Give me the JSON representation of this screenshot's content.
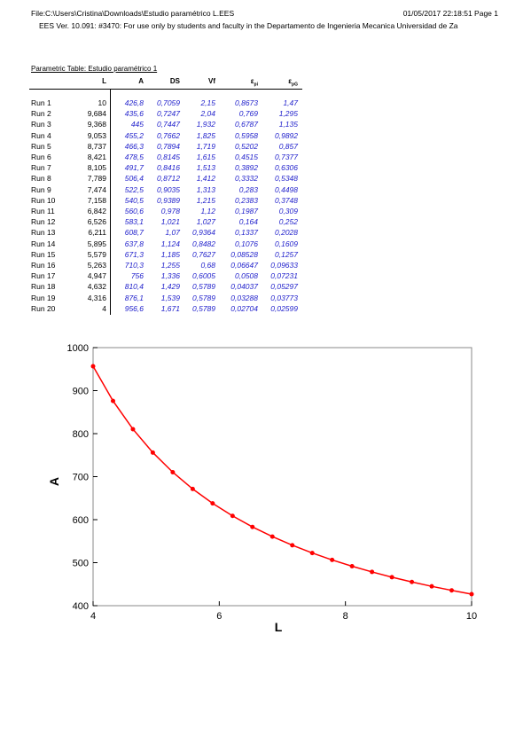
{
  "header": {
    "file": "File:C:\\Users\\Cristina\\Downloads\\Estudio paramétrico L.EES",
    "date": "01/05/2017 22:18:51  Page 1",
    "license": "EES Ver. 10.091: #3470:  For use only by students and faculty in the Departamento de Ingenieria Mecanica Universidad de Za"
  },
  "table": {
    "title": "Parametric Table: Estudio paramétrico 1",
    "columns": [
      {
        "main": "L"
      },
      {
        "main": "A"
      },
      {
        "main": "DS"
      },
      {
        "main": "Vf"
      },
      {
        "main": "ε",
        "sub": "pi"
      },
      {
        "main": "ε",
        "sub": "pG"
      }
    ],
    "rows": [
      {
        "label": "Run 1",
        "cells": [
          "10",
          "426,8",
          "0,7059",
          "2,15",
          "0,8673",
          "1,47"
        ]
      },
      {
        "label": "Run 2",
        "cells": [
          "9,684",
          "435,6",
          "0,7247",
          "2,04",
          "0,769",
          "1,295"
        ]
      },
      {
        "label": "Run 3",
        "cells": [
          "9,368",
          "445",
          "0,7447",
          "1,932",
          "0,6787",
          "1,135"
        ]
      },
      {
        "label": "Run 4",
        "cells": [
          "9,053",
          "455,2",
          "0,7662",
          "1,825",
          "0,5958",
          "0,9892"
        ]
      },
      {
        "label": "Run 5",
        "cells": [
          "8,737",
          "466,3",
          "0,7894",
          "1,719",
          "0,5202",
          "0,857"
        ]
      },
      {
        "label": "Run 6",
        "cells": [
          "8,421",
          "478,5",
          "0,8145",
          "1,615",
          "0,4515",
          "0,7377"
        ]
      },
      {
        "label": "Run 7",
        "cells": [
          "8,105",
          "491,7",
          "0,8416",
          "1,513",
          "0,3892",
          "0,6306"
        ]
      },
      {
        "label": "Run 8",
        "cells": [
          "7,789",
          "506,4",
          "0,8712",
          "1,412",
          "0,3332",
          "0,5348"
        ]
      },
      {
        "label": "Run 9",
        "cells": [
          "7,474",
          "522,5",
          "0,9035",
          "1,313",
          "0,283",
          "0,4498"
        ]
      },
      {
        "label": "Run 10",
        "cells": [
          "7,158",
          "540,5",
          "0,9389",
          "1,215",
          "0,2383",
          "0,3748"
        ]
      },
      {
        "label": "Run 11",
        "cells": [
          "6,842",
          "560,6",
          "0,978",
          "1,12",
          "0,1987",
          "0,309"
        ]
      },
      {
        "label": "Run 12",
        "cells": [
          "6,526",
          "583,1",
          "1,021",
          "1,027",
          "0,164",
          "0,252"
        ]
      },
      {
        "label": "Run 13",
        "cells": [
          "6,211",
          "608,7",
          "1,07",
          "0,9364",
          "0,1337",
          "0,2028"
        ]
      },
      {
        "label": "Run 14",
        "cells": [
          "5,895",
          "637,8",
          "1,124",
          "0,8482",
          "0,1076",
          "0,1609"
        ]
      },
      {
        "label": "Run 15",
        "cells": [
          "5,579",
          "671,3",
          "1,185",
          "0,7627",
          "0,08528",
          "0,1257"
        ]
      },
      {
        "label": "Run 16",
        "cells": [
          "5,263",
          "710,3",
          "1,255",
          "0,68",
          "0,06647",
          "0,09633"
        ]
      },
      {
        "label": "Run 17",
        "cells": [
          "4,947",
          "756",
          "1,336",
          "0,6005",
          "0,0508",
          "0,07231"
        ]
      },
      {
        "label": "Run 18",
        "cells": [
          "4,632",
          "810,4",
          "1,429",
          "0,5789",
          "0,04037",
          "0,05297"
        ]
      },
      {
        "label": "Run 19",
        "cells": [
          "4,316",
          "876,1",
          "1,539",
          "0,5789",
          "0,03288",
          "0,03773"
        ]
      },
      {
        "label": "Run 20",
        "cells": [
          "4",
          "956,6",
          "1,671",
          "0,5789",
          "0,02704",
          "0,02599"
        ]
      }
    ]
  },
  "chart_data": {
    "type": "line",
    "x_label": "L",
    "y_label": "A",
    "color": "#ff0000",
    "x": [
      10,
      9.684,
      9.368,
      9.053,
      8.737,
      8.421,
      8.105,
      7.789,
      7.474,
      7.158,
      6.842,
      6.526,
      6.211,
      5.895,
      5.579,
      5.263,
      4.947,
      4.632,
      4.316,
      4
    ],
    "values": [
      426.8,
      435.6,
      445,
      455.2,
      466.3,
      478.5,
      491.7,
      506.4,
      522.5,
      540.5,
      560.6,
      583.1,
      608.7,
      637.8,
      671.3,
      710.3,
      756,
      810.4,
      876.1,
      956.6
    ],
    "xlim": [
      4,
      10
    ],
    "xticks": [
      4,
      6,
      8,
      10
    ],
    "ylim": [
      400,
      1000
    ],
    "yticks": [
      400,
      500,
      600,
      700,
      800,
      900,
      1000
    ]
  }
}
